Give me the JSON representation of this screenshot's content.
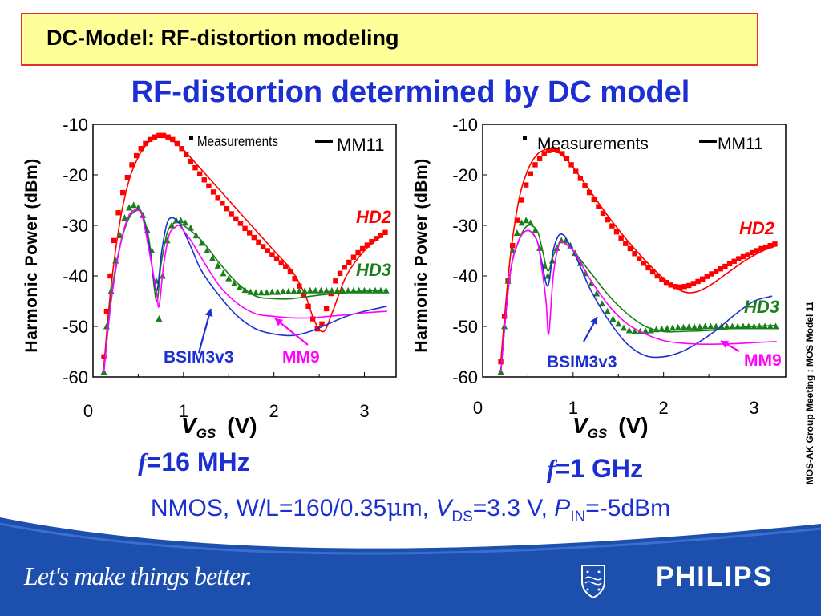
{
  "header": {
    "title": "DC-Model: RF-distortion modeling"
  },
  "subtitle": "RF-distortion determined by DC model",
  "side_note": "MOS-AK Group Meeting : MOS Model 11",
  "conditions": {
    "prefix": "NMOS, W/L=160/0.35",
    "mu": "μ",
    "unit": "m,",
    "v": "V",
    "ds": "DS",
    "vds_val": "=3.3 V,",
    "p": "P",
    "in": "IN",
    "pin_val": "=-5dBm"
  },
  "footer": {
    "slogan": "Let's make things better.",
    "brand": "PHILIPS"
  },
  "colors": {
    "measurements": "#ff0000",
    "hd3": "#1a7f1a",
    "bsim": "#1c2fd1",
    "mm9": "#ff00ff",
    "footer": "#1c4fae"
  },
  "chart_data": [
    {
      "type": "scatter",
      "frequency_label": {
        "f": "f",
        "rest": "=16 MHz"
      },
      "xlabel": {
        "v": "V",
        "sub": "GS",
        "unit": "(V)"
      },
      "ylabel": "Harmonic Power (dBm)",
      "xlim": [
        0,
        3.35
      ],
      "ylim": [
        -60,
        -10
      ],
      "xticks": [
        "0",
        "1",
        "2",
        "3"
      ],
      "yticks": [
        "-10",
        "-20",
        "-30",
        "-40",
        "-50",
        "-60"
      ],
      "legend": {
        "measurements": "Measurements",
        "mm11": "MM11"
      },
      "annotations": {
        "hd2": "HD2",
        "hd3": "HD3",
        "bsim": "BSIM3v3",
        "mm9": "MM9"
      },
      "series": [
        {
          "name": "HD2 Measurements",
          "kind": "markers-square",
          "color": "#ff0000",
          "x": [
            0.12,
            0.15,
            0.19,
            0.23,
            0.28,
            0.33,
            0.38,
            0.43,
            0.48,
            0.53,
            0.58,
            0.63,
            0.68,
            0.73,
            0.78,
            0.83,
            0.88,
            0.93,
            0.98,
            1.03,
            1.08,
            1.13,
            1.18,
            1.23,
            1.28,
            1.33,
            1.38,
            1.43,
            1.48,
            1.53,
            1.58,
            1.63,
            1.68,
            1.73,
            1.78,
            1.83,
            1.88,
            1.93,
            1.98,
            2.03,
            2.08,
            2.13,
            2.18,
            2.23,
            2.28,
            2.33,
            2.38,
            2.43,
            2.48,
            2.53,
            2.58,
            2.63,
            2.68,
            2.73,
            2.78,
            2.83,
            2.88,
            2.93,
            2.98,
            3.03,
            3.08,
            3.13,
            3.18,
            3.23
          ],
          "y": [
            -56,
            -47,
            -40,
            -33,
            -27.5,
            -23.5,
            -20.5,
            -18,
            -16.2,
            -14.8,
            -13.8,
            -13,
            -12.5,
            -12.2,
            -12.2,
            -12.5,
            -13,
            -13.8,
            -14.8,
            -16,
            -17.3,
            -18.6,
            -19.8,
            -21,
            -22.2,
            -23.4,
            -24.5,
            -25.6,
            -26.7,
            -27.7,
            -28.7,
            -29.6,
            -30.6,
            -31.5,
            -32.4,
            -33.3,
            -34.2,
            -35,
            -35.8,
            -36.6,
            -37.4,
            -38.2,
            -39.2,
            -40.5,
            -42,
            -43.8,
            -46,
            -48.5,
            -50.5,
            -49.5,
            -46.5,
            -43.5,
            -41,
            -39.5,
            -38.3,
            -37.3,
            -36.3,
            -35.4,
            -34.6,
            -33.9,
            -33.2,
            -32.6,
            -32,
            -31.4
          ]
        },
        {
          "name": "HD2 MM11",
          "kind": "line",
          "color": "#ff0000",
          "x": [
            0.12,
            0.2,
            0.3,
            0.4,
            0.5,
            0.6,
            0.7,
            0.8,
            0.9,
            1.0,
            1.2,
            1.4,
            1.6,
            1.8,
            2.0,
            2.2,
            2.35,
            2.45,
            2.55,
            2.65,
            2.8,
            3.0,
            3.2
          ],
          "y": [
            -58,
            -42,
            -29,
            -21,
            -16.5,
            -13.8,
            -12.6,
            -12.6,
            -13.5,
            -15,
            -19,
            -23,
            -27,
            -31,
            -35,
            -39,
            -44,
            -49,
            -51,
            -47,
            -40,
            -35,
            -32
          ]
        },
        {
          "name": "HD3 Measurements",
          "kind": "markers-triangle",
          "color": "#1a7f1a",
          "x": [
            0.12,
            0.15,
            0.2,
            0.25,
            0.3,
            0.35,
            0.4,
            0.45,
            0.5,
            0.55,
            0.6,
            0.65,
            0.7,
            0.73,
            0.77,
            0.82,
            0.87,
            0.92,
            0.97,
            1.02,
            1.08,
            1.14,
            1.2,
            1.26,
            1.32,
            1.38,
            1.44,
            1.5,
            1.56,
            1.62,
            1.68,
            1.74,
            1.8,
            1.86,
            1.92,
            1.98,
            2.04,
            2.1,
            2.16,
            2.22,
            2.28,
            2.34,
            2.4,
            2.46,
            2.52,
            2.58,
            2.64,
            2.7,
            2.76,
            2.82,
            2.88,
            2.94,
            3.0,
            3.06,
            3.12,
            3.18,
            3.24
          ],
          "y": [
            -59,
            -50,
            -43,
            -37,
            -32,
            -28.5,
            -26.5,
            -26,
            -26.5,
            -28,
            -31,
            -35,
            -41,
            -48.5,
            -40,
            -33,
            -30,
            -29,
            -29,
            -29.5,
            -30.5,
            -32,
            -33.5,
            -35,
            -36.5,
            -38,
            -39.5,
            -40.5,
            -41.5,
            -42.3,
            -42.8,
            -43.2,
            -43.3,
            -43.3,
            -43.3,
            -43.2,
            -43.2,
            -43.1,
            -43.1,
            -43,
            -43,
            -43,
            -42.9,
            -42.9,
            -42.9,
            -42.9,
            -42.9,
            -42.9,
            -42.9,
            -42.9,
            -42.9,
            -42.9,
            -42.9,
            -42.9,
            -42.9,
            -42.9,
            -42.9
          ]
        },
        {
          "name": "HD3 MM11",
          "kind": "line",
          "color": "#1a7f1a",
          "x": [
            0.12,
            0.2,
            0.3,
            0.4,
            0.5,
            0.55,
            0.62,
            0.7,
            0.75,
            0.82,
            0.9,
            1.0,
            1.2,
            1.4,
            1.6,
            1.8,
            2.0,
            2.2,
            2.5,
            2.8,
            3.0,
            3.25
          ],
          "y": [
            -59,
            -44,
            -34,
            -28.5,
            -27,
            -28,
            -33,
            -45,
            -38,
            -31.5,
            -29.5,
            -30,
            -33,
            -37.5,
            -41.5,
            -44,
            -44.5,
            -44.5,
            -43.8,
            -43.3,
            -43,
            -42.8
          ]
        },
        {
          "name": "BSIM3v3",
          "kind": "line",
          "color": "#1c2fd1",
          "x": [
            0.12,
            0.2,
            0.3,
            0.4,
            0.5,
            0.55,
            0.62,
            0.7,
            0.76,
            0.82,
            0.88,
            0.95,
            1.0,
            1.1,
            1.2,
            1.4,
            1.6,
            1.8,
            2.0,
            2.2,
            2.4,
            2.6,
            2.8,
            3.0,
            3.25
          ],
          "y": [
            -59,
            -45,
            -34,
            -28,
            -27,
            -28.5,
            -34,
            -43,
            -35,
            -29.5,
            -28.5,
            -29.5,
            -31,
            -35,
            -39,
            -44,
            -48,
            -50.5,
            -51.5,
            -51.8,
            -51,
            -49.5,
            -48,
            -47,
            -46
          ]
        },
        {
          "name": "MM9",
          "kind": "line",
          "color": "#ff00ff",
          "x": [
            0.12,
            0.2,
            0.3,
            0.4,
            0.5,
            0.55,
            0.62,
            0.7,
            0.73,
            0.78,
            0.84,
            0.9,
            0.95,
            1.0,
            1.1,
            1.2,
            1.4,
            1.6,
            1.8,
            2.0,
            2.2,
            2.4,
            2.6,
            2.8,
            3.0,
            3.25
          ],
          "y": [
            -59,
            -45,
            -34,
            -28,
            -27,
            -28.5,
            -35,
            -43,
            -46,
            -38,
            -32,
            -30.5,
            -30,
            -31,
            -33.5,
            -36.5,
            -42,
            -45.5,
            -47.5,
            -48,
            -48.3,
            -48.3,
            -48,
            -47.7,
            -47.3,
            -47
          ]
        }
      ]
    },
    {
      "type": "scatter",
      "frequency_label": {
        "f": "f",
        "rest": "=1 GHz"
      },
      "xlabel": {
        "v": "V",
        "sub": "GS",
        "unit": "(V)"
      },
      "ylabel": "Harmonic Power (dBm)",
      "xlim": [
        0,
        3.35
      ],
      "ylim": [
        -60,
        -10
      ],
      "xticks": [
        "0",
        "1",
        "2",
        "3"
      ],
      "yticks": [
        "-10",
        "-20",
        "-30",
        "-40",
        "-50",
        "-60"
      ],
      "legend": {
        "measurements": "Measurements",
        "mm11": "MM11"
      },
      "annotations": {
        "hd2": "HD2",
        "hd3": "HD3",
        "bsim": "BSIM3v3",
        "mm9": "MM9"
      },
      "series": [
        {
          "name": "HD2 Measurements",
          "kind": "markers-square",
          "color": "#ff0000",
          "x": [
            0.2,
            0.24,
            0.28,
            0.33,
            0.38,
            0.43,
            0.48,
            0.53,
            0.58,
            0.63,
            0.68,
            0.73,
            0.78,
            0.83,
            0.88,
            0.93,
            0.98,
            1.03,
            1.08,
            1.13,
            1.18,
            1.23,
            1.28,
            1.33,
            1.38,
            1.43,
            1.48,
            1.53,
            1.58,
            1.63,
            1.68,
            1.73,
            1.78,
            1.83,
            1.88,
            1.93,
            1.98,
            2.03,
            2.08,
            2.13,
            2.18,
            2.23,
            2.28,
            2.33,
            2.38,
            2.43,
            2.48,
            2.53,
            2.58,
            2.63,
            2.68,
            2.73,
            2.78,
            2.83,
            2.88,
            2.93,
            2.98,
            3.03,
            3.08,
            3.13,
            3.18,
            3.23
          ],
          "y": [
            -57,
            -48,
            -41,
            -34,
            -29,
            -25,
            -22,
            -19.8,
            -18,
            -16.8,
            -15.8,
            -15.2,
            -15,
            -15.2,
            -15.8,
            -16.8,
            -18,
            -19.3,
            -20.7,
            -22.1,
            -23.5,
            -24.9,
            -26.3,
            -27.6,
            -28.9,
            -30.1,
            -31.3,
            -32.5,
            -33.6,
            -34.6,
            -35.6,
            -36.6,
            -37.5,
            -38.4,
            -39.2,
            -40,
            -40.7,
            -41.3,
            -41.8,
            -42.1,
            -42.2,
            -42.1,
            -41.9,
            -41.5,
            -41.1,
            -40.6,
            -40.1,
            -39.6,
            -39.1,
            -38.6,
            -38.1,
            -37.6,
            -37.1,
            -36.6,
            -36.2,
            -35.8,
            -35.4,
            -35,
            -34.6,
            -34.3,
            -34,
            -33.7
          ]
        },
        {
          "name": "HD2 MM11",
          "kind": "line",
          "color": "#ff0000",
          "x": [
            0.2,
            0.3,
            0.4,
            0.5,
            0.6,
            0.7,
            0.8,
            0.9,
            1.0,
            1.2,
            1.4,
            1.6,
            1.8,
            2.0,
            2.2,
            2.35,
            2.5,
            2.7,
            2.9,
            3.1,
            3.25
          ],
          "y": [
            -57,
            -37,
            -25,
            -19,
            -16,
            -15,
            -15.2,
            -16.5,
            -18.5,
            -23.5,
            -28.5,
            -33,
            -37,
            -40.5,
            -43,
            -43.2,
            -42,
            -39.5,
            -37,
            -35,
            -34
          ]
        },
        {
          "name": "HD3 Measurements",
          "kind": "markers-triangle",
          "color": "#1a7f1a",
          "x": [
            0.2,
            0.24,
            0.28,
            0.33,
            0.38,
            0.43,
            0.48,
            0.53,
            0.58,
            0.63,
            0.68,
            0.72,
            0.77,
            0.82,
            0.87,
            0.92,
            0.97,
            1.02,
            1.08,
            1.14,
            1.2,
            1.26,
            1.32,
            1.38,
            1.44,
            1.5,
            1.56,
            1.62,
            1.68,
            1.74,
            1.8,
            1.86,
            1.92,
            1.98,
            2.04,
            2.1,
            2.16,
            2.22,
            2.28,
            2.34,
            2.4,
            2.46,
            2.52,
            2.58,
            2.64,
            2.7,
            2.76,
            2.82,
            2.88,
            2.94,
            3.0,
            3.06,
            3.12,
            3.18,
            3.24
          ],
          "y": [
            -59,
            -50,
            -41,
            -35,
            -31.5,
            -29.5,
            -29,
            -29.5,
            -31,
            -34.5,
            -38,
            -40,
            -37,
            -34.5,
            -33,
            -33,
            -34,
            -35.5,
            -37.5,
            -39.5,
            -41.5,
            -43.5,
            -45.5,
            -47,
            -48.5,
            -49.5,
            -50.3,
            -50.8,
            -51,
            -51,
            -50.9,
            -50.8,
            -50.6,
            -50.5,
            -50.4,
            -50.3,
            -50.2,
            -50.2,
            -50.1,
            -50.1,
            -50.1,
            -50,
            -50,
            -50,
            -50,
            -50,
            -50,
            -50,
            -50,
            -50,
            -50,
            -50,
            -50,
            -50,
            -50
          ]
        },
        {
          "name": "HD3 MM11",
          "kind": "line",
          "color": "#1a7f1a",
          "x": [
            0.2,
            0.3,
            0.4,
            0.5,
            0.6,
            0.65,
            0.72,
            0.78,
            0.85,
            0.9,
            1.0,
            1.2,
            1.4,
            1.6,
            1.8,
            2.0,
            2.2,
            2.5,
            2.8,
            3.0,
            3.25
          ],
          "y": [
            -59,
            -40,
            -33,
            -30,
            -31,
            -34,
            -39,
            -36,
            -33.5,
            -33.5,
            -35,
            -39.5,
            -44,
            -47.5,
            -50,
            -51,
            -51,
            -50.8,
            -50.3,
            -50,
            -49.8
          ]
        },
        {
          "name": "BSIM3v3",
          "kind": "line",
          "color": "#1c2fd1",
          "x": [
            0.2,
            0.3,
            0.4,
            0.5,
            0.6,
            0.65,
            0.72,
            0.78,
            0.84,
            0.9,
            0.95,
            1.0,
            1.1,
            1.2,
            1.4,
            1.6,
            1.8,
            2.0,
            2.2,
            2.4,
            2.6,
            2.8,
            3.0,
            3.2
          ],
          "y": [
            -59,
            -40,
            -33,
            -31,
            -33,
            -37,
            -42,
            -35,
            -32,
            -32,
            -33.5,
            -35,
            -39,
            -43,
            -49,
            -53.5,
            -55.8,
            -56,
            -55,
            -53,
            -50.5,
            -47.5,
            -45,
            -44
          ]
        },
        {
          "name": "MM9",
          "kind": "line",
          "color": "#ff00ff",
          "x": [
            0.2,
            0.3,
            0.4,
            0.5,
            0.6,
            0.65,
            0.7,
            0.73,
            0.78,
            0.84,
            0.9,
            1.0,
            1.1,
            1.2,
            1.4,
            1.6,
            1.8,
            2.0,
            2.2,
            2.4,
            2.6,
            2.8,
            3.0,
            3.25
          ],
          "y": [
            -59,
            -40,
            -33,
            -31,
            -33,
            -38,
            -45,
            -51.5,
            -40,
            -34,
            -33.5,
            -35,
            -38,
            -41,
            -46,
            -49.5,
            -51.5,
            -52.8,
            -53.3,
            -53.5,
            -53.5,
            -53.4,
            -53.2,
            -53
          ]
        }
      ]
    }
  ]
}
